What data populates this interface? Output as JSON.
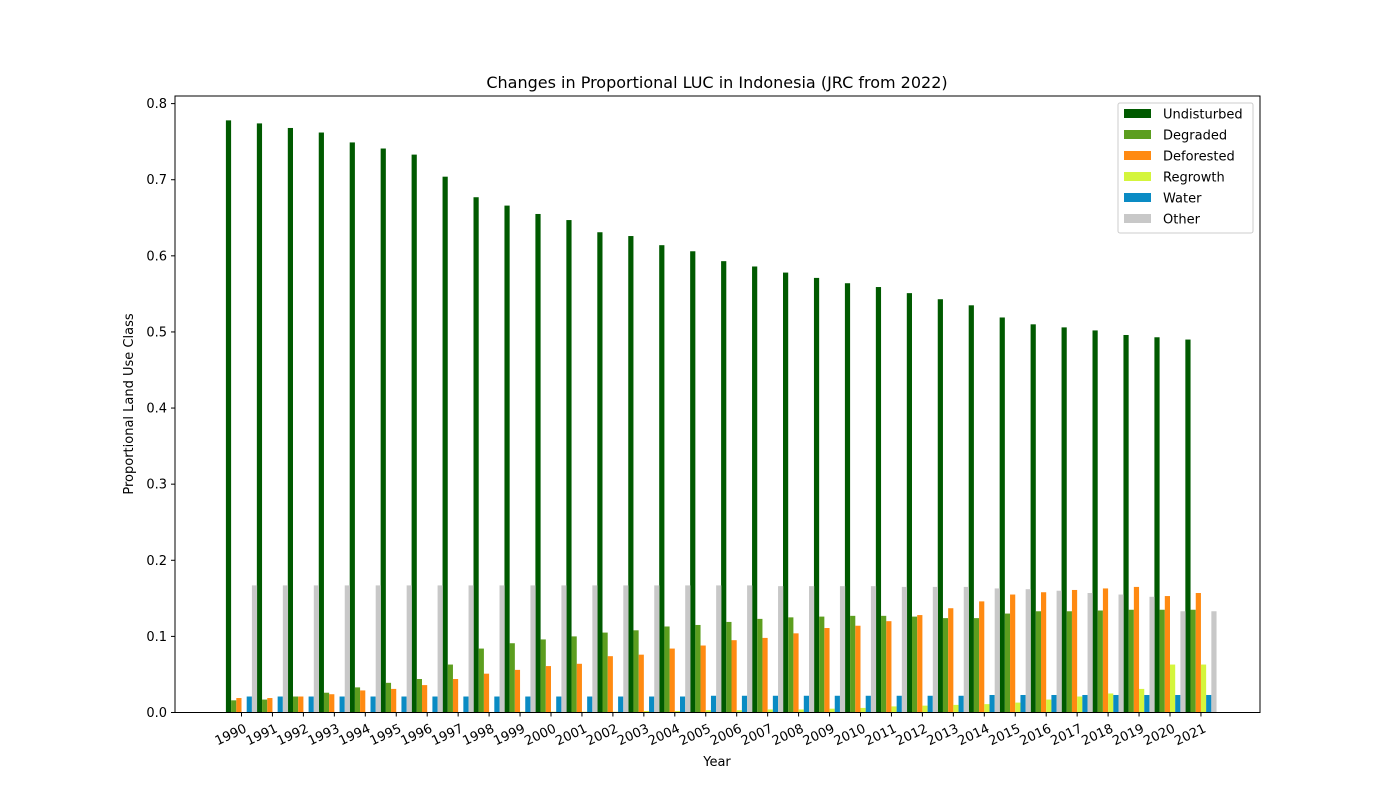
{
  "chart_data": {
    "type": "bar",
    "title": "Changes in Proportional LUC in Indonesia (JRC from 2022)",
    "xlabel": "Year",
    "ylabel": "Proportional Land Use Class",
    "ylim": [
      0,
      0.81
    ],
    "yticks": [
      "0.0",
      "0.1",
      "0.2",
      "0.3",
      "0.4",
      "0.5",
      "0.6",
      "0.7",
      "0.8"
    ],
    "grid": false,
    "legend_position": "top-right",
    "categories": [
      "1990",
      "1991",
      "1992",
      "1993",
      "1994",
      "1995",
      "1996",
      "1997",
      "1998",
      "1999",
      "2000",
      "2001",
      "2002",
      "2003",
      "2004",
      "2005",
      "2006",
      "2007",
      "2008",
      "2009",
      "2010",
      "2011",
      "2012",
      "2013",
      "2014",
      "2015",
      "2016",
      "2017",
      "2018",
      "2019",
      "2020",
      "2021"
    ],
    "series": [
      {
        "name": "Undisturbed",
        "color": "#005a00",
        "values": [
          0.778,
          0.774,
          0.768,
          0.762,
          0.749,
          0.741,
          0.733,
          0.704,
          0.677,
          0.666,
          0.655,
          0.647,
          0.631,
          0.626,
          0.614,
          0.606,
          0.593,
          0.586,
          0.578,
          0.571,
          0.564,
          0.559,
          0.551,
          0.543,
          0.535,
          0.519,
          0.51,
          0.506,
          0.502,
          0.496,
          0.493,
          0.49
        ]
      },
      {
        "name": "Degraded",
        "color": "#5c9e1f",
        "values": [
          0.016,
          0.017,
          0.021,
          0.026,
          0.033,
          0.039,
          0.044,
          0.063,
          0.084,
          0.091,
          0.096,
          0.1,
          0.105,
          0.108,
          0.113,
          0.115,
          0.119,
          0.123,
          0.125,
          0.126,
          0.127,
          0.127,
          0.126,
          0.124,
          0.124,
          0.13,
          0.133,
          0.133,
          0.134,
          0.135,
          0.135,
          0.135
        ]
      },
      {
        "name": "Deforested",
        "color": "#ff8a12",
        "values": [
          0.019,
          0.019,
          0.021,
          0.024,
          0.029,
          0.031,
          0.036,
          0.044,
          0.051,
          0.056,
          0.061,
          0.064,
          0.074,
          0.076,
          0.084,
          0.088,
          0.095,
          0.098,
          0.104,
          0.111,
          0.114,
          0.12,
          0.128,
          0.137,
          0.146,
          0.155,
          0.158,
          0.161,
          0.163,
          0.165,
          0.153,
          0.157
        ]
      },
      {
        "name": "Regrowth",
        "color": "#d4f53c",
        "values": [
          0.0,
          0.0,
          0.0,
          0.0,
          0.0,
          0.0,
          0.0,
          0.0,
          0.0,
          0.001,
          0.001,
          0.001,
          0.001,
          0.002,
          0.002,
          0.003,
          0.003,
          0.004,
          0.004,
          0.005,
          0.006,
          0.008,
          0.009,
          0.01,
          0.011,
          0.013,
          0.017,
          0.021,
          0.025,
          0.031,
          0.063,
          0.063
        ]
      },
      {
        "name": "Water",
        "color": "#0a8bc4",
        "values": [
          0.021,
          0.021,
          0.021,
          0.021,
          0.021,
          0.021,
          0.021,
          0.021,
          0.021,
          0.021,
          0.021,
          0.021,
          0.021,
          0.021,
          0.021,
          0.022,
          0.022,
          0.022,
          0.022,
          0.022,
          0.022,
          0.022,
          0.022,
          0.022,
          0.023,
          0.023,
          0.023,
          0.023,
          0.023,
          0.023,
          0.023,
          0.023
        ]
      },
      {
        "name": "Other",
        "color": "#c8c8c8",
        "values": [
          0.167,
          0.167,
          0.167,
          0.167,
          0.167,
          0.167,
          0.167,
          0.167,
          0.167,
          0.167,
          0.167,
          0.167,
          0.167,
          0.167,
          0.167,
          0.167,
          0.167,
          0.166,
          0.166,
          0.166,
          0.166,
          0.165,
          0.165,
          0.165,
          0.163,
          0.162,
          0.16,
          0.157,
          0.155,
          0.152,
          0.133,
          0.133
        ]
      }
    ]
  }
}
